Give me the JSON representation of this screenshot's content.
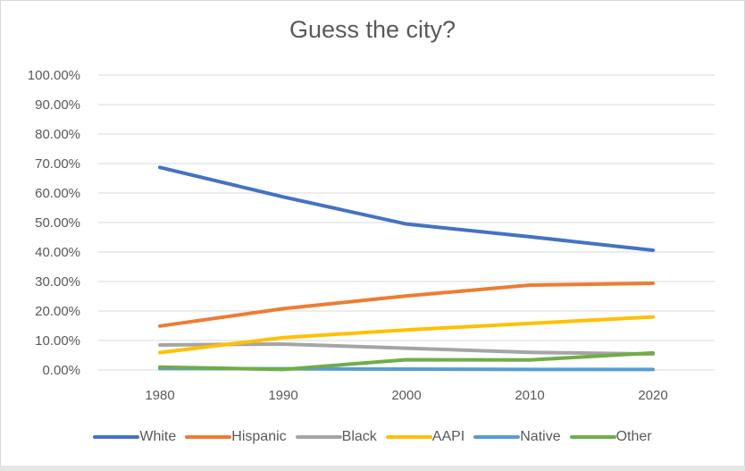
{
  "chart_data": {
    "type": "line",
    "title": "Guess the city?",
    "categories": [
      "1980",
      "1990",
      "2000",
      "2010",
      "2020"
    ],
    "ylim": [
      0,
      100
    ],
    "y_ticks": [
      "0.00%",
      "10.00%",
      "20.00%",
      "30.00%",
      "40.00%",
      "50.00%",
      "60.00%",
      "70.00%",
      "80.00%",
      "90.00%",
      "100.00%"
    ],
    "grid": true,
    "legend_position": "bottom",
    "series": [
      {
        "name": "White",
        "color": "#4472C4",
        "values": [
          68.7,
          58.7,
          49.5,
          45.2,
          40.6
        ]
      },
      {
        "name": "Hispanic",
        "color": "#ED7D31",
        "values": [
          14.9,
          20.8,
          25.1,
          28.8,
          29.4
        ]
      },
      {
        "name": "Black",
        "color": "#A5A5A5",
        "values": [
          8.5,
          8.8,
          7.4,
          6.0,
          5.4
        ]
      },
      {
        "name": "AAPI",
        "color": "#FFC000",
        "values": [
          5.9,
          11.0,
          13.6,
          15.8,
          18.0
        ]
      },
      {
        "name": "Native",
        "color": "#5B9BD5",
        "values": [
          0.5,
          0.4,
          0.3,
          0.2,
          0.2
        ]
      },
      {
        "name": "Other",
        "color": "#70AD47",
        "values": [
          1.0,
          0.2,
          3.5,
          3.4,
          5.8
        ]
      }
    ]
  }
}
